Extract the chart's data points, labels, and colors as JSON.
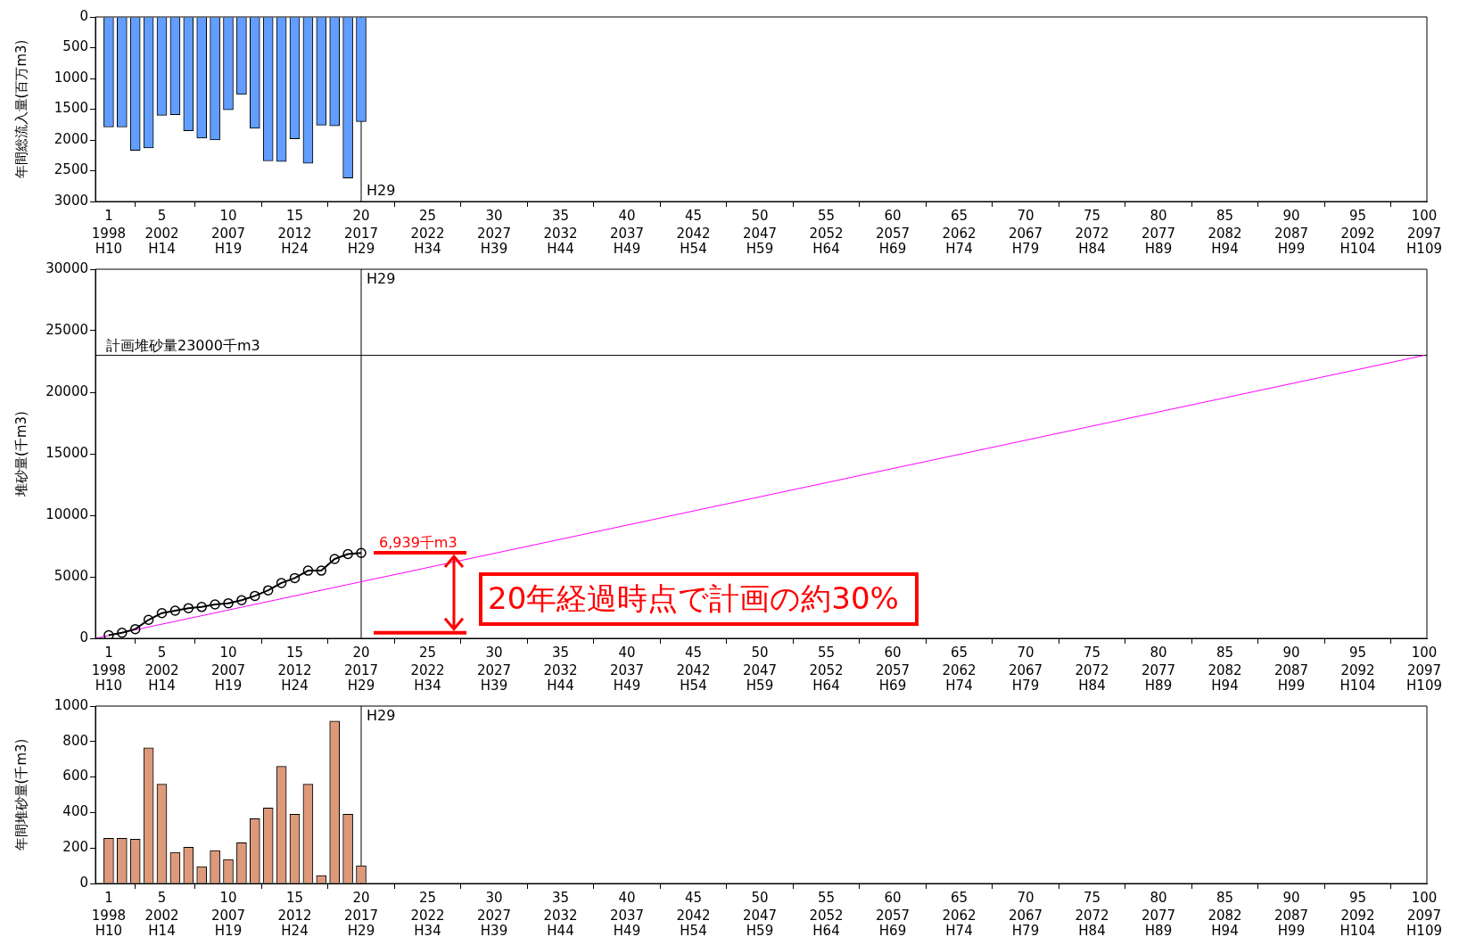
{
  "chart_data": [
    {
      "type": "bar",
      "ylabel": "年間総流入量(百万m3)",
      "x": [
        1,
        2,
        3,
        4,
        5,
        6,
        7,
        8,
        9,
        10,
        11,
        12,
        13,
        14,
        15,
        16,
        17,
        18,
        19,
        20
      ],
      "series": [
        {
          "color": "#619eff",
          "values": [
            1790,
            1790,
            2170,
            2130,
            1600,
            1590,
            1850,
            1970,
            2000,
            1510,
            1260,
            1810,
            2340,
            2350,
            1980,
            2380,
            1760,
            1770,
            2620,
            1700
          ]
        }
      ],
      "xlim": [
        0,
        100.2
      ],
      "xticks": [
        1,
        5,
        10,
        15,
        20,
        25,
        30,
        35,
        40,
        45,
        50,
        55,
        60,
        65,
        70,
        75,
        80,
        85,
        90,
        95,
        100
      ],
      "x2lim": [
        1997,
        2097.2
      ],
      "x2ticks": [
        1998,
        2002,
        2007,
        2012,
        2017,
        2022,
        2027,
        2032,
        2037,
        2042,
        2047,
        2052,
        2057,
        2062,
        2067,
        2072,
        2077,
        2082,
        2087,
        2092,
        2097
      ],
      "ylim": [
        3000,
        0
      ],
      "yticks": [
        0,
        500,
        1000,
        1500,
        2000,
        2500,
        3000
      ],
      "ref_lines": [
        {
          "axis": "x",
          "value": 20,
          "label": "H29"
        }
      ],
      "annotations": [
        "H10",
        "H14",
        "H19",
        "H24",
        "H29",
        "H34",
        "H39",
        "H44",
        "H49",
        "H54",
        "H59",
        "H64",
        "H69",
        "H74",
        "H79",
        "H84",
        "H89",
        "H94",
        "H99",
        "H104",
        "H109"
      ],
      "grid": false,
      "legend": false
    },
    {
      "type": "line",
      "ylabel": "堆砂量(千m3)",
      "x": [
        1,
        2,
        3,
        4,
        5,
        6,
        7,
        8,
        9,
        10,
        11,
        12,
        13,
        14,
        15,
        16,
        17,
        18,
        19,
        20
      ],
      "marker": "circle",
      "series": [
        {
          "color": "#000000",
          "values": [
            250,
            450,
            750,
            1500,
            2050,
            2250,
            2450,
            2550,
            2750,
            2850,
            3100,
            3450,
            3900,
            4500,
            4900,
            5500,
            5500,
            6450,
            6850,
            6939
          ]
        },
        {
          "color": "#ff00ff",
          "x": [
            0,
            100
          ],
          "values": [
            0,
            23000
          ],
          "marker": "none"
        }
      ],
      "xlim": [
        0,
        100.2
      ],
      "xticks": [
        1,
        5,
        10,
        15,
        20,
        25,
        30,
        35,
        40,
        45,
        50,
        55,
        60,
        65,
        70,
        75,
        80,
        85,
        90,
        95,
        100
      ],
      "x2lim": [
        1997,
        2097.2
      ],
      "x2ticks": [
        1998,
        2002,
        2007,
        2012,
        2017,
        2022,
        2027,
        2032,
        2037,
        2042,
        2047,
        2052,
        2057,
        2062,
        2067,
        2072,
        2077,
        2082,
        2087,
        2092,
        2097
      ],
      "ylim": [
        0,
        30000
      ],
      "yticks": [
        0,
        5000,
        10000,
        15000,
        20000,
        25000,
        30000
      ],
      "ref_lines": [
        {
          "axis": "x",
          "value": 20,
          "label": "H29"
        },
        {
          "axis": "y",
          "value": 23000,
          "label": "計画堆砂量23000千m3"
        }
      ],
      "annotations": [
        {
          "text": "6,939千m3",
          "x": 20,
          "y": 6939
        },
        "20年経過時点で計画の約30%",
        "H10",
        "H14",
        "H19",
        "H24",
        "H29",
        "H34",
        "H39",
        "H44",
        "H49",
        "H54",
        "H59",
        "H64",
        "H69",
        "H74",
        "H79",
        "H84",
        "H89",
        "H94",
        "H99",
        "H104",
        "H109"
      ],
      "grid": false,
      "legend": false
    },
    {
      "type": "bar",
      "ylabel": "年間堆砂量(千m3)",
      "x": [
        1,
        2,
        3,
        4,
        5,
        6,
        7,
        8,
        9,
        10,
        11,
        12,
        13,
        14,
        15,
        16,
        17,
        18,
        19,
        20
      ],
      "series": [
        {
          "color": "#dc9a7a",
          "values": [
            255,
            255,
            250,
            765,
            560,
            175,
            205,
            95,
            185,
            135,
            230,
            365,
            425,
            660,
            390,
            560,
            45,
            915,
            390,
            100
          ]
        }
      ],
      "xlim": [
        0,
        100.2
      ],
      "xticks": [
        1,
        5,
        10,
        15,
        20,
        25,
        30,
        35,
        40,
        45,
        50,
        55,
        60,
        65,
        70,
        75,
        80,
        85,
        90,
        95,
        100
      ],
      "x2lim": [
        1997,
        2097.2
      ],
      "x2ticks": [
        1998,
        2002,
        2007,
        2012,
        2017,
        2022,
        2027,
        2032,
        2037,
        2042,
        2047,
        2052,
        2057,
        2062,
        2067,
        2072,
        2077,
        2082,
        2087,
        2092,
        2097
      ],
      "ylim": [
        0,
        1000
      ],
      "yticks": [
        0,
        200,
        400,
        600,
        800,
        1000
      ],
      "ref_lines": [
        {
          "axis": "x",
          "value": 20,
          "label": "H29"
        }
      ],
      "annotations": [
        "H10",
        "H14",
        "H19",
        "H24",
        "H29",
        "H34",
        "H39",
        "H44",
        "H49",
        "H54",
        "H59",
        "H64",
        "H69",
        "H74",
        "H79",
        "H84",
        "H89",
        "H94",
        "H99",
        "H104",
        "H109"
      ],
      "grid": false,
      "legend": false
    }
  ]
}
